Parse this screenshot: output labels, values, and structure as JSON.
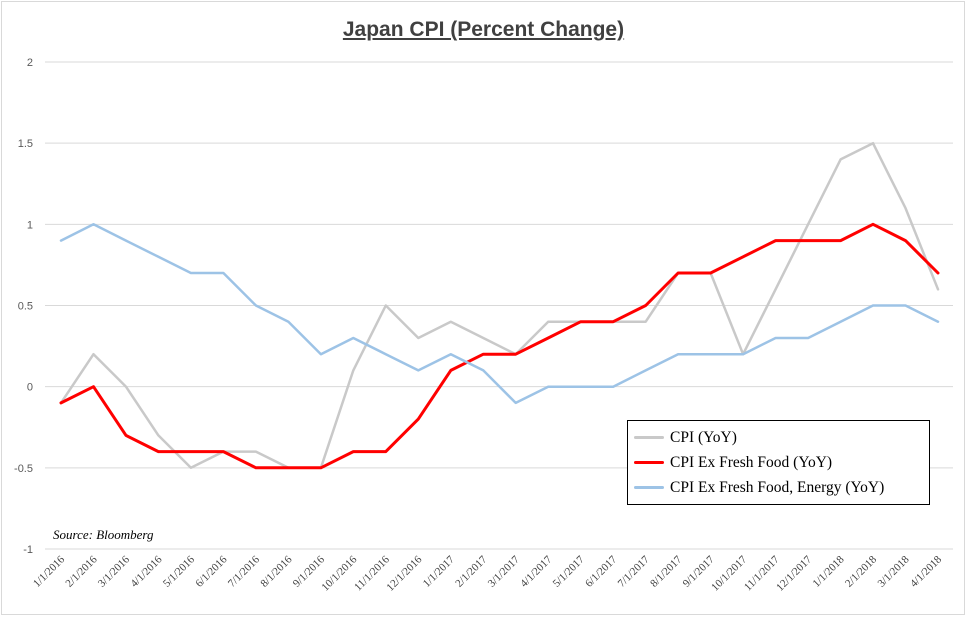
{
  "chart_data": {
    "type": "line",
    "title": "Japan CPI (Percent Change)",
    "xlabel": "",
    "ylabel": "",
    "ylim": [
      -1,
      2
    ],
    "yticks": [
      -1,
      -0.5,
      0,
      0.5,
      1,
      1.5,
      2
    ],
    "ytick_labels": [
      "-1",
      "-0.5",
      "0",
      "0.5",
      "1",
      "1.5",
      "2"
    ],
    "grid": true,
    "legend_position": "bottom-right",
    "categories": [
      "1/1/2016",
      "2/1/2016",
      "3/1/2016",
      "4/1/2016",
      "5/1/2016",
      "6/1/2016",
      "7/1/2016",
      "8/1/2016",
      "9/1/2016",
      "10/1/2016",
      "11/1/2016",
      "12/1/2016",
      "1/1/2017",
      "2/1/2017",
      "3/1/2017",
      "4/1/2017",
      "5/1/2017",
      "6/1/2017",
      "7/1/2017",
      "8/1/2017",
      "9/1/2017",
      "10/1/2017",
      "11/1/2017",
      "12/1/2017",
      "1/1/2018",
      "2/1/2018",
      "3/1/2018",
      "4/1/2018"
    ],
    "series": [
      {
        "name": "CPI (YoY)",
        "color": "#c9c9c9",
        "values": [
          -0.1,
          0.2,
          0.0,
          -0.3,
          -0.5,
          -0.4,
          -0.4,
          -0.5,
          -0.5,
          0.1,
          0.5,
          0.3,
          0.4,
          0.3,
          0.2,
          0.4,
          0.4,
          0.4,
          0.4,
          0.7,
          0.7,
          0.2,
          0.6,
          1.0,
          1.4,
          1.5,
          1.1,
          0.6
        ]
      },
      {
        "name": "CPI Ex Fresh Food (YoY)",
        "color": "#ff0000",
        "values": [
          -0.1,
          0.0,
          -0.3,
          -0.4,
          -0.4,
          -0.4,
          -0.5,
          -0.5,
          -0.5,
          -0.4,
          -0.4,
          -0.2,
          0.1,
          0.2,
          0.2,
          0.3,
          0.4,
          0.4,
          0.5,
          0.7,
          0.7,
          0.8,
          0.9,
          0.9,
          0.9,
          1.0,
          0.9,
          0.7
        ]
      },
      {
        "name": "CPI Ex Fresh Food, Energy (YoY)",
        "color": "#9dc3e6",
        "values": [
          0.9,
          1.0,
          0.9,
          0.8,
          0.7,
          0.7,
          0.5,
          0.4,
          0.2,
          0.3,
          0.2,
          0.1,
          0.2,
          0.1,
          -0.1,
          0.0,
          0.0,
          0.0,
          0.1,
          0.2,
          0.2,
          0.2,
          0.3,
          0.3,
          0.4,
          0.5,
          0.5,
          0.4
        ]
      }
    ],
    "annotation": "Source: Bloomberg"
  }
}
